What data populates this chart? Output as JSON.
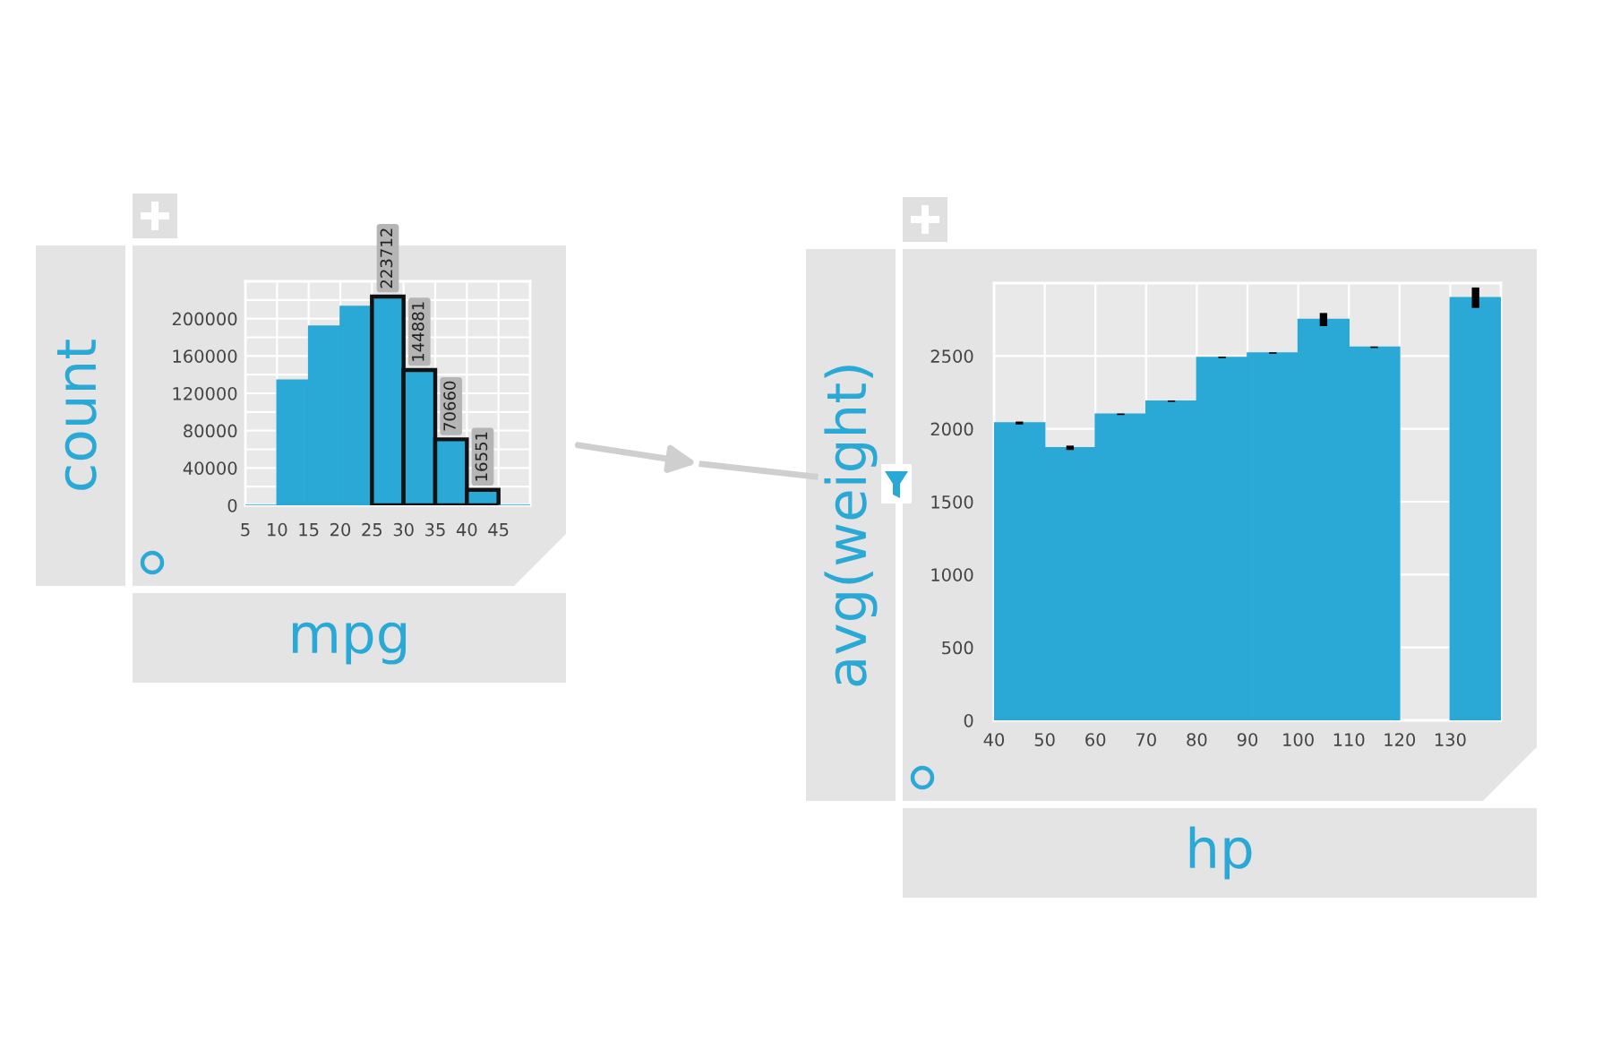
{
  "chart_data": [
    {
      "type": "histogram",
      "xlabel": "mpg",
      "ylabel": "count",
      "bins": [
        5,
        10,
        15,
        20,
        25,
        30,
        35,
        40,
        45,
        50
      ],
      "values": [
        0,
        134000,
        192000,
        213000,
        223712,
        144881,
        70660,
        16551,
        0
      ],
      "value_labels": [
        null,
        null,
        null,
        null,
        "223712",
        "144881",
        "70660",
        "16551",
        null
      ],
      "color": "#2aa8d6",
      "xlim": [
        5,
        50
      ],
      "xticks": [
        5,
        10,
        15,
        20,
        25,
        30,
        35,
        40,
        45
      ],
      "ylim": [
        0,
        240000
      ],
      "yticks": [
        0,
        {
          "value": 20000,
          "label": null
        },
        40000,
        {
          "value": 60000,
          "label": null
        },
        80000,
        {
          "value": 100000,
          "label": null
        },
        120000,
        {
          "value": 140000,
          "label": null
        },
        160000,
        {
          "value": 180000,
          "label": null
        },
        200000,
        {
          "value": 220000,
          "label": null
        }
      ],
      "grid": true
    },
    {
      "type": "histogram",
      "xlabel": "hp",
      "ylabel": "avg(weight)",
      "bins": [
        40,
        50,
        60,
        70,
        80,
        90,
        100,
        110,
        120,
        130,
        140
      ],
      "values": [
        2040,
        1870,
        2100,
        2190,
        2490,
        2520,
        2750,
        2560,
        null,
        2900
      ],
      "errors": [
        10,
        15,
        5,
        5,
        5,
        5,
        45,
        5,
        null,
        70
      ],
      "color": "#2aa8d6",
      "xlim": [
        40,
        140
      ],
      "xticks": [
        40,
        50,
        60,
        70,
        80,
        90,
        100,
        110,
        120,
        130
      ],
      "ylim": [
        0,
        3000
      ],
      "yticks": [
        0,
        500,
        1000,
        1500,
        2000,
        2500
      ],
      "grid": true
    }
  ]
}
